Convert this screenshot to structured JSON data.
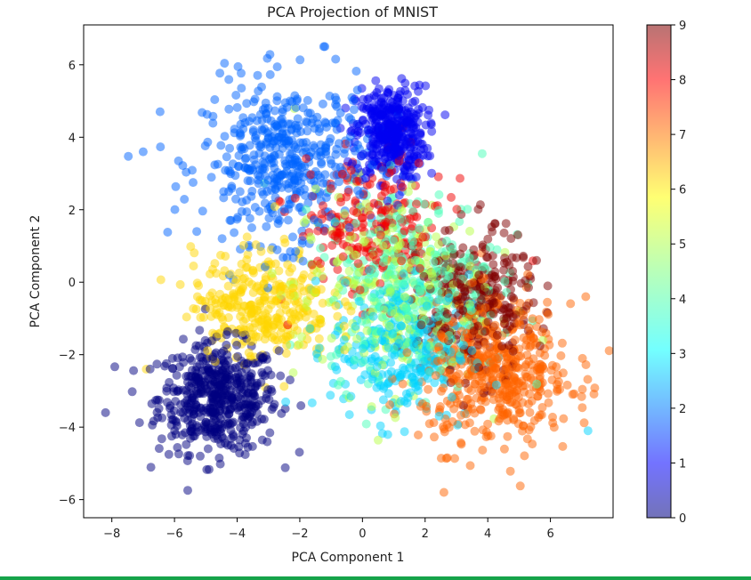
{
  "chart_data": {
    "type": "scatter",
    "title": "PCA Projection of MNIST",
    "xlabel": "PCA Component 1",
    "ylabel": "PCA Component 2",
    "xlim": [
      -8.9,
      8.0
    ],
    "ylim": [
      -6.5,
      7.1
    ],
    "xticks": [
      "−8",
      "−6",
      "−4",
      "−2",
      "0",
      "2",
      "4",
      "6"
    ],
    "xtick_values": [
      -8,
      -6,
      -4,
      -2,
      0,
      2,
      4,
      6
    ],
    "yticks": [
      "−6",
      "−4",
      "−2",
      "0",
      "2",
      "4",
      "6"
    ],
    "ytick_values": [
      -6,
      -4,
      -2,
      0,
      2,
      4,
      6
    ],
    "grid": false,
    "colormap": "jet",
    "alpha": 0.5,
    "colorbar": {
      "range": [
        0,
        9
      ],
      "ticks": [
        "0",
        "1",
        "2",
        "3",
        "4",
        "5",
        "6",
        "7",
        "8",
        "9"
      ],
      "tick_values": [
        0,
        1,
        2,
        3,
        4,
        5,
        6,
        7,
        8,
        9
      ]
    },
    "clusters": [
      {
        "label": 0,
        "center": [
          -4.6,
          -3.2
        ],
        "spread": [
          0.95,
          0.75
        ],
        "count": 520
      },
      {
        "label": 1,
        "center": [
          0.9,
          4.1
        ],
        "spread": [
          0.55,
          0.65
        ],
        "count": 420
      },
      {
        "label": 2,
        "center": [
          -2.4,
          3.3
        ],
        "spread": [
          1.35,
          1.1
        ],
        "count": 480
      },
      {
        "label": 3,
        "center": [
          1.2,
          -1.8
        ],
        "spread": [
          1.1,
          1.0
        ],
        "count": 300
      },
      {
        "label": 4,
        "center": [
          1.6,
          0.0
        ],
        "spread": [
          1.4,
          1.3
        ],
        "count": 300
      },
      {
        "label": 5,
        "center": [
          0.8,
          -0.2
        ],
        "spread": [
          1.5,
          1.4
        ],
        "count": 260
      },
      {
        "label": 6,
        "center": [
          -3.2,
          -0.6
        ],
        "spread": [
          1.1,
          0.75
        ],
        "count": 330
      },
      {
        "label": 7,
        "center": [
          4.3,
          -2.5
        ],
        "spread": [
          1.2,
          1.0
        ],
        "count": 500
      },
      {
        "label": 8,
        "center": [
          0.3,
          1.5
        ],
        "spread": [
          1.2,
          1.0
        ],
        "count": 220
      },
      {
        "label": 9,
        "center": [
          3.6,
          -0.6
        ],
        "spread": [
          0.9,
          1.0
        ],
        "count": 300
      }
    ],
    "outliers": [
      {
        "x": 7.2,
        "y": -4.1,
        "label": 3
      },
      {
        "x": -1.2,
        "y": 6.5,
        "label": 2
      },
      {
        "x": 2.6,
        "y": -5.8,
        "label": 7
      },
      {
        "x": -7.0,
        "y": 3.6,
        "label": 2
      },
      {
        "x": -8.2,
        "y": -3.6,
        "label": 0
      },
      {
        "x": -6.9,
        "y": -2.4,
        "label": 6
      }
    ]
  }
}
